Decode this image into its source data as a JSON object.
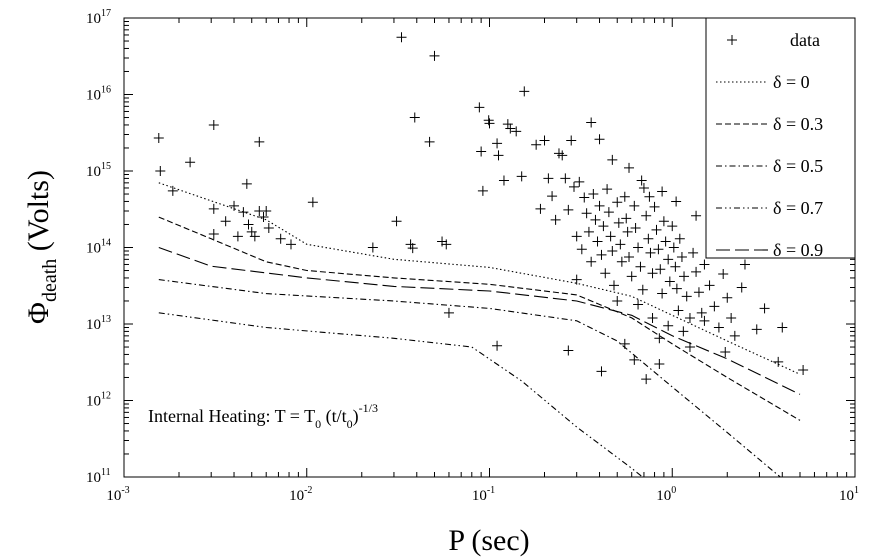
{
  "chart_data": {
    "type": "scatter",
    "title": "",
    "xlabel": "P (sec)",
    "ylabel_main": "Φ",
    "ylabel_sub": "death",
    "ylabel_unit": " (Volts)",
    "xscale": "log",
    "yscale": "log",
    "xlim": [
      0.001,
      10
    ],
    "ylim": [
      100000000000.0,
      1e+17
    ],
    "x_ticks": [
      {
        "base": "10",
        "exp": "-3",
        "value": 0.001
      },
      {
        "base": "10",
        "exp": "-2",
        "value": 0.01
      },
      {
        "base": "10",
        "exp": "-1",
        "value": 0.1
      },
      {
        "base": "10",
        "exp": "0",
        "value": 1
      },
      {
        "base": "10",
        "exp": "1",
        "value": 10
      }
    ],
    "y_ticks": [
      {
        "base": "10",
        "exp": "11",
        "value": 100000000000.0
      },
      {
        "base": "10",
        "exp": "12",
        "value": 1000000000000.0
      },
      {
        "base": "10",
        "exp": "13",
        "value": 10000000000000.0
      },
      {
        "base": "10",
        "exp": "14",
        "value": 100000000000000.0
      },
      {
        "base": "10",
        "exp": "15",
        "value": 1000000000000000.0
      },
      {
        "base": "10",
        "exp": "16",
        "value": 1e+16
      },
      {
        "base": "10",
        "exp": "17",
        "value": 1e+17
      }
    ],
    "grid": false,
    "legend_position": "top-right",
    "annotation": {
      "prefix": "Internal Heating: T = T",
      "t0_sub": "0",
      "middle": " (t/t",
      "t0b_sub": "0",
      "close": ")",
      "exponent": "-1/3"
    },
    "series": [
      {
        "name": "data",
        "style": "marker-plus",
        "points": [
          [
            0.00155,
            2700000000000000.0
          ],
          [
            0.00158,
            1000000000000000.0
          ],
          [
            0.00185,
            550000000000000.0
          ],
          [
            0.0023,
            1300000000000000.0
          ],
          [
            0.0031,
            4000000000000000.0
          ],
          [
            0.0031,
            320000000000000.0
          ],
          [
            0.0031,
            150000000000000.0
          ],
          [
            0.0036,
            220000000000000.0
          ],
          [
            0.004,
            350000000000000.0
          ],
          [
            0.0042,
            140000000000000.0
          ],
          [
            0.0045,
            290000000000000.0
          ],
          [
            0.0047,
            680000000000000.0
          ],
          [
            0.0048,
            200000000000000.0
          ],
          [
            0.005,
            160000000000000.0
          ],
          [
            0.0052,
            140000000000000.0
          ],
          [
            0.0055,
            2400000000000000.0
          ],
          [
            0.0055,
            300000000000000.0
          ],
          [
            0.0058,
            250000000000000.0
          ],
          [
            0.006,
            300000000000000.0
          ],
          [
            0.0062,
            180000000000000.0
          ],
          [
            0.0072,
            130000000000000.0
          ],
          [
            0.0082,
            110000000000000.0
          ],
          [
            0.0108,
            390000000000000.0
          ],
          [
            0.023,
            100000000000000.0
          ],
          [
            0.031,
            220000000000000.0
          ],
          [
            0.033,
            5.6e+16
          ],
          [
            0.037,
            110000000000000.0
          ],
          [
            0.038,
            98000000000000.0
          ],
          [
            0.039,
            5000000000000000.0
          ],
          [
            0.047,
            2400000000000000.0
          ],
          [
            0.05,
            3.2e+16
          ],
          [
            0.055,
            120000000000000.0
          ],
          [
            0.058,
            110000000000000.0
          ],
          [
            0.06,
            14000000000000.0
          ],
          [
            0.088,
            6800000000000000.0
          ],
          [
            0.09,
            1800000000000000.0
          ],
          [
            0.092,
            550000000000000.0
          ],
          [
            0.099,
            4600000000000000.0
          ],
          [
            0.1,
            4200000000000000.0
          ],
          [
            0.11,
            2300000000000000.0
          ],
          [
            0.112,
            1600000000000000.0
          ],
          [
            0.12,
            750000000000000.0
          ],
          [
            0.126,
            4100000000000000.0
          ],
          [
            0.13,
            3600000000000000.0
          ],
          [
            0.14,
            3300000000000000.0
          ],
          [
            0.15,
            850000000000000.0
          ],
          [
            0.155,
            1.1e+16
          ],
          [
            0.18,
            2200000000000000.0
          ],
          [
            0.19,
            320000000000000.0
          ],
          [
            0.2,
            2500000000000000.0
          ],
          [
            0.21,
            800000000000000.0
          ],
          [
            0.22,
            470000000000000.0
          ],
          [
            0.23,
            230000000000000.0
          ],
          [
            0.24,
            1700000000000000.0
          ],
          [
            0.25,
            1600000000000000.0
          ],
          [
            0.26,
            800000000000000.0
          ],
          [
            0.27,
            310000000000000.0
          ],
          [
            0.28,
            2500000000000000.0
          ],
          [
            0.29,
            620000000000000.0
          ],
          [
            0.3,
            140000000000000.0
          ],
          [
            0.31,
            720000000000000.0
          ],
          [
            0.32,
            95000000000000.0
          ],
          [
            0.33,
            450000000000000.0
          ],
          [
            0.34,
            280000000000000.0
          ],
          [
            0.35,
            160000000000000.0
          ],
          [
            0.36,
            65000000000000.0
          ],
          [
            0.37,
            500000000000000.0
          ],
          [
            0.38,
            230000000000000.0
          ],
          [
            0.39,
            120000000000000.0
          ],
          [
            0.4,
            350000000000000.0
          ],
          [
            0.41,
            80000000000000.0
          ],
          [
            0.42,
            190000000000000.0
          ],
          [
            0.43,
            46000000000000.0
          ],
          [
            0.44,
            580000000000000.0
          ],
          [
            0.45,
            290000000000000.0
          ],
          [
            0.46,
            140000000000000.0
          ],
          [
            0.47,
            90000000000000.0
          ],
          [
            0.48,
            32000000000000.0
          ],
          [
            0.5,
            390000000000000.0
          ],
          [
            0.51,
            210000000000000.0
          ],
          [
            0.52,
            110000000000000.0
          ],
          [
            0.53,
            65000000000000.0
          ],
          [
            0.55,
            460000000000000.0
          ],
          [
            0.56,
            240000000000000.0
          ],
          [
            0.57,
            160000000000000.0
          ],
          [
            0.58,
            75000000000000.0
          ],
          [
            0.6,
            42000000000000.0
          ],
          [
            0.62,
            350000000000000.0
          ],
          [
            0.63,
            180000000000000.0
          ],
          [
            0.65,
            100000000000000.0
          ],
          [
            0.67,
            56000000000000.0
          ],
          [
            0.69,
            28000000000000.0
          ],
          [
            0.7,
            600000000000000.0
          ],
          [
            0.72,
            260000000000000.0
          ],
          [
            0.74,
            130000000000000.0
          ],
          [
            0.76,
            85000000000000.0
          ],
          [
            0.78,
            46000000000000.0
          ],
          [
            0.8,
            340000000000000.0
          ],
          [
            0.82,
            170000000000000.0
          ],
          [
            0.84,
            95000000000000.0
          ],
          [
            0.86,
            52000000000000.0
          ],
          [
            0.88,
            25000000000000.0
          ],
          [
            0.9,
            220000000000000.0
          ],
          [
            0.92,
            120000000000000.0
          ],
          [
            0.95,
            70000000000000.0
          ],
          [
            0.97,
            36000000000000.0
          ],
          [
            1.0,
            190000000000000.0
          ],
          [
            1.02,
            100000000000000.0
          ],
          [
            1.04,
            56000000000000.0
          ],
          [
            1.06,
            29000000000000.0
          ],
          [
            1.08,
            15000000000000.0
          ],
          [
            1.1,
            130000000000000.0
          ],
          [
            1.13,
            75000000000000.0
          ],
          [
            1.16,
            42000000000000.0
          ],
          [
            1.2,
            23000000000000.0
          ],
          [
            1.25,
            12000000000000.0
          ],
          [
            1.3,
            85000000000000.0
          ],
          [
            1.35,
            48000000000000.0
          ],
          [
            1.4,
            26000000000000.0
          ],
          [
            1.45,
            14000000000000.0
          ],
          [
            1.5,
            60000000000000.0
          ],
          [
            1.6,
            32000000000000.0
          ],
          [
            1.7,
            17000000000000.0
          ],
          [
            1.8,
            9000000000000.0
          ],
          [
            1.9,
            45000000000000.0
          ],
          [
            2.0,
            22000000000000.0
          ],
          [
            2.1,
            12000000000000.0
          ],
          [
            2.2,
            7000000000000.0
          ],
          [
            2.4,
            30000000000000.0
          ],
          [
            2.5,
            60000000000000.0
          ],
          [
            0.11,
            5200000000000.0
          ],
          [
            0.27,
            4500000000000.0
          ],
          [
            0.55,
            5500000000000.0
          ],
          [
            0.62,
            3400000000000.0
          ],
          [
            0.72,
            1900000000000.0
          ],
          [
            0.41,
            2400000000000.0
          ],
          [
            0.85,
            3000000000000.0
          ],
          [
            1.25,
            5000000000000.0
          ],
          [
            1.95,
            4300000000000.0
          ],
          [
            2.9,
            8500000000000.0
          ],
          [
            3.2,
            16000000000000.0
          ],
          [
            3.8,
            3200000000000.0
          ],
          [
            4.0,
            9000000000000.0
          ],
          [
            5.2,
            2500000000000.0
          ],
          [
            0.36,
            4300000000000000.0
          ],
          [
            0.4,
            2600000000000000.0
          ],
          [
            0.47,
            1400000000000000.0
          ],
          [
            0.58,
            1100000000000000.0
          ],
          [
            0.68,
            750000000000000.0
          ],
          [
            0.75,
            460000000000000.0
          ],
          [
            0.88,
            540000000000000.0
          ],
          [
            1.05,
            400000000000000.0
          ],
          [
            1.35,
            260000000000000.0
          ],
          [
            1.7,
            160000000000000.0
          ],
          [
            2.2,
            140000000000000.0
          ],
          [
            2.6,
            90000000000000.0
          ],
          [
            0.3,
            38000000000000.0
          ],
          [
            0.5,
            20000000000000.0
          ],
          [
            0.65,
            18000000000000.0
          ],
          [
            0.78,
            12000000000000.0
          ],
          [
            0.95,
            9500000000000.0
          ],
          [
            1.15,
            8000000000000.0
          ],
          [
            1.5,
            11000000000000.0
          ],
          [
            0.85,
            6500000000000.0
          ]
        ]
      },
      {
        "name": "δ = 0",
        "style": "dotted",
        "points": [
          [
            0.00155,
            700000000000000.0
          ],
          [
            0.006,
            230000000000000.0
          ],
          [
            0.01,
            110000000000000.0
          ],
          [
            0.03,
            70000000000000.0
          ],
          [
            0.1,
            55000000000000.0
          ],
          [
            0.3,
            34000000000000.0
          ],
          [
            0.6,
            23000000000000.0
          ],
          [
            1.0,
            13000000000000.0
          ],
          [
            2.0,
            6000000000000.0
          ],
          [
            5.0,
            2200000000000.0
          ]
        ]
      },
      {
        "name": "δ = 0.3",
        "style": "dash-short",
        "points": [
          [
            0.00155,
            250000000000000.0
          ],
          [
            0.003,
            130000000000000.0
          ],
          [
            0.006,
            65000000000000.0
          ],
          [
            0.01,
            50000000000000.0
          ],
          [
            0.03,
            40000000000000.0
          ],
          [
            0.1,
            33000000000000.0
          ],
          [
            0.3,
            24000000000000.0
          ],
          [
            0.6,
            12000000000000.0
          ],
          [
            1.0,
            5500000000000.0
          ],
          [
            2.0,
            2000000000000.0
          ],
          [
            5.0,
            550000000000.0
          ]
        ]
      },
      {
        "name": "δ = 0.5",
        "style": "dash-dot",
        "points": [
          [
            0.00155,
            38000000000000.0
          ],
          [
            0.006,
            25000000000000.0
          ],
          [
            0.03,
            20000000000000.0
          ],
          [
            0.1,
            16000000000000.0
          ],
          [
            0.3,
            11000000000000.0
          ],
          [
            0.5,
            6000000000000.0
          ],
          [
            1.0,
            1500000000000.0
          ],
          [
            2.0,
            380000000000.0
          ],
          [
            4.0,
            95000000000.0
          ]
        ]
      },
      {
        "name": "δ = 0.7",
        "style": "dash-dot-dot",
        "points": [
          [
            0.00155,
            14000000000000.0
          ],
          [
            0.006,
            9000000000000.0
          ],
          [
            0.03,
            6500000000000.0
          ],
          [
            0.08,
            5000000000000.0
          ],
          [
            0.15,
            1800000000000.0
          ],
          [
            0.3,
            450000000000.0
          ],
          [
            0.6,
            130000000000.0
          ],
          [
            0.9,
            60000000000.0
          ]
        ]
      },
      {
        "name": "δ = 0.9",
        "style": "dash-long",
        "points": [
          [
            0.00155,
            100000000000000.0
          ],
          [
            0.003,
            57000000000000.0
          ],
          [
            0.01,
            40000000000000.0
          ],
          [
            0.03,
            31000000000000.0
          ],
          [
            0.1,
            27000000000000.0
          ],
          [
            0.3,
            20000000000000.0
          ],
          [
            0.6,
            13000000000000.0
          ],
          [
            1.0,
            7000000000000.0
          ],
          [
            2.0,
            3500000000000.0
          ],
          [
            5.0,
            1200000000000.0
          ]
        ]
      }
    ]
  }
}
